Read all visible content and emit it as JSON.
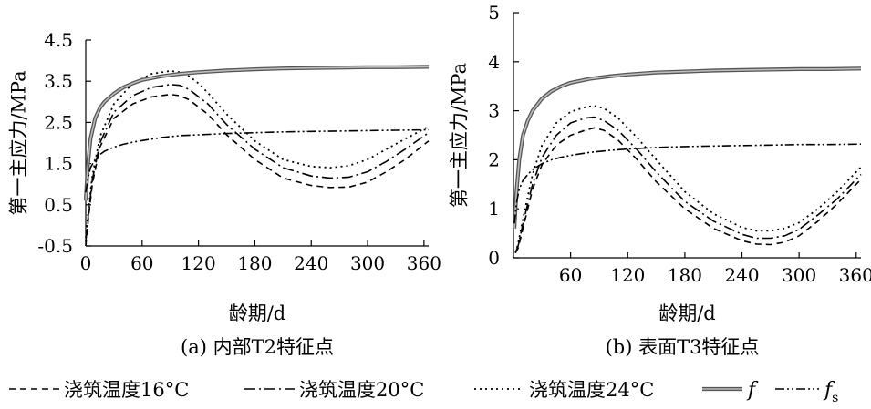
{
  "legend": {
    "items": [
      {
        "label": "浇筑温度16°C",
        "dash": "7,5",
        "width": 1.6
      },
      {
        "label": "浇筑温度20°C",
        "dash": "12,4,2,4",
        "width": 1.6
      },
      {
        "label": "浇筑温度24°C",
        "dash": "2,4",
        "width": 1.8
      },
      {
        "label": "f",
        "dash": "",
        "width": 3.5
      },
      {
        "label": "f",
        "sub": "s",
        "dash": "10,3,2,3,2,3",
        "width": 1.6
      }
    ]
  },
  "chart_data": [
    {
      "type": "line",
      "caption": "(a) 内部T2特征点",
      "xlabel": "龄期/d",
      "ylabel": "第一主应力/MPa",
      "xlim": [
        0,
        365
      ],
      "ylim": [
        -0.5,
        4.5
      ],
      "xticks": [
        0,
        60,
        120,
        180,
        240,
        300,
        360
      ],
      "xtick_labels": [
        "0",
        "60",
        "120",
        "180",
        "240",
        "300",
        "360"
      ],
      "yticks": [
        -0.5,
        0.5,
        1.5,
        2.5,
        3.5,
        4.5
      ],
      "ytick_labels": [
        "-0.5",
        "0.5",
        "1.5",
        "2.5",
        "3.5",
        "4.5"
      ],
      "series": [
        {
          "name": "浇筑温度16°C",
          "x": [
            0,
            3,
            7,
            15,
            30,
            50,
            70,
            90,
            100,
            110,
            130,
            150,
            180,
            210,
            240,
            260,
            280,
            300,
            320,
            340,
            365
          ],
          "y": [
            -0.5,
            0.2,
            1.0,
            1.9,
            2.6,
            2.95,
            3.12,
            3.18,
            3.15,
            3.05,
            2.7,
            2.2,
            1.6,
            1.15,
            0.97,
            0.92,
            0.93,
            1.05,
            1.3,
            1.6,
            2.05
          ]
        },
        {
          "name": "浇筑温度20°C",
          "x": [
            0,
            3,
            7,
            15,
            30,
            50,
            70,
            90,
            100,
            110,
            130,
            150,
            180,
            210,
            240,
            260,
            280,
            300,
            320,
            340,
            365
          ],
          "y": [
            -0.4,
            0.3,
            1.1,
            2.0,
            2.75,
            3.15,
            3.35,
            3.42,
            3.4,
            3.3,
            2.95,
            2.45,
            1.85,
            1.4,
            1.2,
            1.15,
            1.17,
            1.3,
            1.55,
            1.85,
            2.25
          ]
        },
        {
          "name": "浇筑温度24°C",
          "x": [
            0,
            3,
            7,
            15,
            30,
            50,
            70,
            90,
            100,
            110,
            120,
            130,
            150,
            180,
            210,
            240,
            260,
            280,
            300,
            320,
            340,
            365
          ],
          "y": [
            -0.3,
            0.4,
            1.2,
            2.15,
            2.95,
            3.45,
            3.68,
            3.75,
            3.72,
            3.62,
            3.45,
            3.22,
            2.7,
            2.05,
            1.6,
            1.43,
            1.4,
            1.45,
            1.6,
            1.85,
            2.1,
            2.4
          ]
        },
        {
          "name": "f",
          "x": [
            0,
            2,
            5,
            10,
            15,
            20,
            30,
            40,
            50,
            60,
            80,
            100,
            120,
            150,
            180,
            210,
            240,
            270,
            300,
            330,
            365
          ],
          "y": [
            0.6,
            1.4,
            2.1,
            2.6,
            2.85,
            3.0,
            3.2,
            3.35,
            3.45,
            3.53,
            3.62,
            3.68,
            3.72,
            3.76,
            3.79,
            3.81,
            3.82,
            3.83,
            3.84,
            3.84,
            3.85
          ]
        },
        {
          "name": "fs",
          "x": [
            0,
            2,
            5,
            10,
            15,
            20,
            30,
            40,
            50,
            60,
            80,
            100,
            120,
            150,
            180,
            210,
            240,
            270,
            300,
            330,
            365
          ],
          "y": [
            0.8,
            1.1,
            1.4,
            1.6,
            1.72,
            1.8,
            1.9,
            1.97,
            2.02,
            2.06,
            2.13,
            2.18,
            2.2,
            2.23,
            2.25,
            2.27,
            2.28,
            2.29,
            2.3,
            2.31,
            2.32
          ]
        }
      ]
    },
    {
      "type": "line",
      "caption": "(b) 表面T3特征点",
      "xlabel": "龄期/d",
      "ylabel": "第一主应力/MPa",
      "xlim": [
        0,
        365
      ],
      "ylim": [
        0,
        5
      ],
      "xticks": [
        60,
        120,
        180,
        240,
        300,
        360
      ],
      "xtick_labels": [
        "60",
        "120",
        "180",
        "240",
        "300",
        "360"
      ],
      "yticks": [
        0,
        1,
        2,
        3,
        4,
        5
      ],
      "ytick_labels": [
        "0",
        "1",
        "2",
        "3",
        "4",
        "5"
      ],
      "series": [
        {
          "name": "浇筑温度16°C",
          "x": [
            2,
            5,
            10,
            20,
            30,
            45,
            60,
            75,
            85,
            95,
            110,
            130,
            150,
            180,
            210,
            240,
            255,
            270,
            285,
            300,
            320,
            340,
            365
          ],
          "y": [
            0.1,
            0.2,
            0.6,
            1.4,
            1.9,
            2.3,
            2.5,
            2.6,
            2.65,
            2.6,
            2.4,
            2.0,
            1.55,
            1.0,
            0.6,
            0.35,
            0.28,
            0.27,
            0.32,
            0.45,
            0.75,
            1.1,
            1.6
          ]
        },
        {
          "name": "浇筑温度20°C",
          "x": [
            2,
            5,
            10,
            20,
            30,
            45,
            60,
            75,
            85,
            95,
            110,
            130,
            150,
            180,
            210,
            240,
            255,
            270,
            285,
            300,
            320,
            340,
            365
          ],
          "y": [
            0.1,
            0.25,
            0.7,
            1.5,
            2.05,
            2.5,
            2.75,
            2.85,
            2.87,
            2.8,
            2.6,
            2.2,
            1.75,
            1.15,
            0.75,
            0.48,
            0.4,
            0.4,
            0.45,
            0.58,
            0.88,
            1.2,
            1.7
          ]
        },
        {
          "name": "浇筑温度24°C",
          "x": [
            2,
            5,
            10,
            20,
            30,
            45,
            60,
            75,
            85,
            95,
            110,
            130,
            150,
            180,
            210,
            240,
            255,
            270,
            285,
            300,
            320,
            340,
            365
          ],
          "y": [
            0.1,
            0.3,
            0.8,
            1.7,
            2.3,
            2.75,
            2.98,
            3.07,
            3.1,
            3.05,
            2.85,
            2.45,
            2.0,
            1.35,
            0.9,
            0.62,
            0.55,
            0.55,
            0.6,
            0.72,
            1.0,
            1.35,
            1.85
          ]
        },
        {
          "name": "f",
          "x": [
            1,
            3,
            6,
            10,
            15,
            20,
            30,
            40,
            50,
            60,
            80,
            100,
            120,
            150,
            180,
            210,
            240,
            270,
            300,
            330,
            365
          ],
          "y": [
            0.6,
            1.3,
            2.0,
            2.5,
            2.8,
            3.0,
            3.25,
            3.4,
            3.5,
            3.57,
            3.65,
            3.7,
            3.74,
            3.78,
            3.8,
            3.82,
            3.83,
            3.84,
            3.85,
            3.85,
            3.86
          ]
        },
        {
          "name": "fs",
          "x": [
            1,
            3,
            6,
            10,
            15,
            20,
            30,
            40,
            50,
            60,
            80,
            100,
            120,
            150,
            180,
            210,
            240,
            270,
            300,
            330,
            365
          ],
          "y": [
            0.7,
            1.1,
            1.4,
            1.58,
            1.7,
            1.8,
            1.92,
            2.0,
            2.05,
            2.09,
            2.15,
            2.19,
            2.22,
            2.25,
            2.27,
            2.28,
            2.29,
            2.3,
            2.31,
            2.31,
            2.32
          ]
        }
      ]
    }
  ]
}
